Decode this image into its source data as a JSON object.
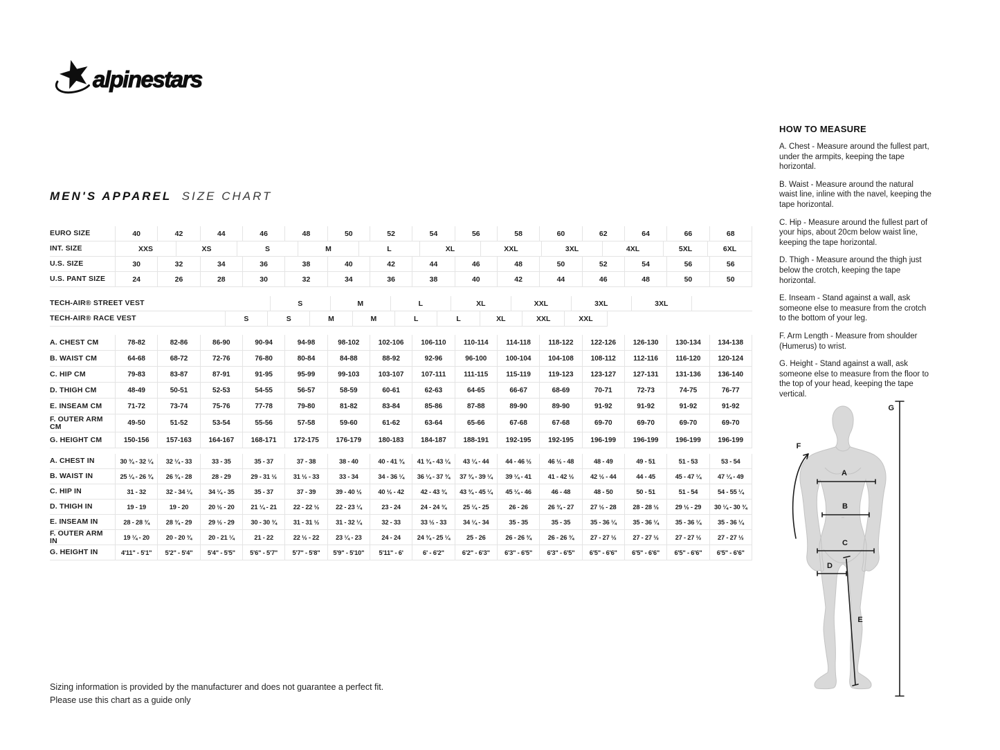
{
  "brand": {
    "text": "alpinestars"
  },
  "title": {
    "main": "MEN'S APPAREL",
    "sub": "SIZE CHART"
  },
  "table": {
    "groups": [
      {
        "rows": [
          {
            "label": "EURO SIZE",
            "layout": "plain",
            "values": [
              "40",
              "42",
              "44",
              "46",
              "48",
              "50",
              "52",
              "54",
              "56",
              "58",
              "60",
              "62",
              "64",
              "66",
              "68"
            ]
          },
          {
            "label": "INT. SIZE",
            "layout": "int",
            "values": [
              "XXS",
              "XS",
              "S",
              "M",
              "L",
              "XL",
              "XXL",
              "3XL",
              "4XL",
              "5XL",
              "6XL"
            ]
          },
          {
            "label": "U.S. SIZE",
            "layout": "plain",
            "values": [
              "30",
              "32",
              "34",
              "36",
              "38",
              "40",
              "42",
              "44",
              "46",
              "48",
              "50",
              "52",
              "54",
              "56",
              "56"
            ]
          },
          {
            "label": "U.S. PANT SIZE",
            "layout": "plain",
            "values": [
              "24",
              "26",
              "28",
              "30",
              "32",
              "34",
              "36",
              "38",
              "40",
              "42",
              "44",
              "46",
              "48",
              "50",
              "50"
            ]
          }
        ]
      },
      {
        "rows": [
          {
            "label": "TECH-AIR® STREET VEST",
            "layout": "street",
            "values": [
              "S",
              "M",
              "L",
              "XL",
              "XXL",
              "3XL",
              "3XL"
            ]
          },
          {
            "label": "TECH-AIR® RACE VEST",
            "layout": "race",
            "values": [
              "S",
              "S",
              "M",
              "M",
              "L",
              "L",
              "XL",
              "XXL",
              "XXL"
            ]
          }
        ]
      },
      {
        "rows": [
          {
            "label": "A. CHEST CM",
            "layout": "plain",
            "values": [
              "78-82",
              "82-86",
              "86-90",
              "90-94",
              "94-98",
              "98-102",
              "102-106",
              "106-110",
              "110-114",
              "114-118",
              "118-122",
              "122-126",
              "126-130",
              "130-134",
              "134-138"
            ]
          },
          {
            "label": "B. WAIST CM",
            "layout": "plain",
            "values": [
              "64-68",
              "68-72",
              "72-76",
              "76-80",
              "80-84",
              "84-88",
              "88-92",
              "92-96",
              "96-100",
              "100-104",
              "104-108",
              "108-112",
              "112-116",
              "116-120",
              "120-124"
            ]
          },
          {
            "label": "C. HIP CM",
            "layout": "plain",
            "values": [
              "79-83",
              "83-87",
              "87-91",
              "91-95",
              "95-99",
              "99-103",
              "103-107",
              "107-111",
              "111-115",
              "115-119",
              "119-123",
              "123-127",
              "127-131",
              "131-136",
              "136-140"
            ]
          },
          {
            "label": "D. THIGH CM",
            "layout": "plain",
            "values": [
              "48-49",
              "50-51",
              "52-53",
              "54-55",
              "56-57",
              "58-59",
              "60-61",
              "62-63",
              "64-65",
              "66-67",
              "68-69",
              "70-71",
              "72-73",
              "74-75",
              "76-77"
            ]
          },
          {
            "label": "E. INSEAM CM",
            "layout": "plain",
            "values": [
              "71-72",
              "73-74",
              "75-76",
              "77-78",
              "79-80",
              "81-82",
              "83-84",
              "85-86",
              "87-88",
              "89-90",
              "89-90",
              "91-92",
              "91-92",
              "91-92",
              "91-92"
            ]
          },
          {
            "label": "F. OUTER ARM CM",
            "layout": "plain",
            "tall": true,
            "values": [
              "49-50",
              "51-52",
              "53-54",
              "55-56",
              "57-58",
              "59-60",
              "61-62",
              "63-64",
              "65-66",
              "67-68",
              "67-68",
              "69-70",
              "69-70",
              "69-70",
              "69-70"
            ]
          },
          {
            "label": "G. HEIGHT CM",
            "layout": "plain",
            "values": [
              "150-156",
              "157-163",
              "164-167",
              "168-171",
              "172-175",
              "176-179",
              "180-183",
              "184-187",
              "188-191",
              "192-195",
              "192-195",
              "196-199",
              "196-199",
              "196-199",
              "196-199"
            ]
          }
        ]
      },
      {
        "rows": [
          {
            "label": "A. CHEST IN",
            "layout": "plain",
            "values": [
              "30 ¾ - 32 ¼",
              "32 ¼ - 33",
              "33 - 35",
              "35 - 37",
              "37 - 38",
              "38 - 40",
              "40 - 41 ¾",
              "41 ¾ - 43 ¼",
              "43 ¼ - 44",
              "44 - 46 ½",
              "46 ½ - 48",
              "48 - 49",
              "49 - 51",
              "51 - 53",
              "53 - 54"
            ]
          },
          {
            "label": "B. WAIST IN",
            "layout": "plain",
            "values": [
              "25 ¼ - 26 ¾",
              "26 ¾ - 28",
              "28 - 29",
              "29 - 31 ½",
              "31 ½ - 33",
              "33 - 34",
              "34 - 36 ¼",
              "36 ¼ - 37 ¾",
              "37 ¾ - 39 ¼",
              "39 ¼ - 41",
              "41 - 42 ½",
              "42 ½ - 44",
              "44 - 45",
              "45 - 47 ¼",
              "47 ¼ - 49"
            ]
          },
          {
            "label": "C. HIP IN",
            "layout": "plain",
            "values": [
              "31 - 32",
              "32 - 34 ¼",
              "34 ¼ - 35",
              "35 - 37",
              "37 - 39",
              "39 - 40 ½",
              "40 ½ - 42",
              "42 - 43 ¾",
              "43 ¾ - 45 ¼",
              "45 ¼ - 46",
              "46 - 48",
              "48 - 50",
              "50 - 51",
              "51 - 54",
              "54 - 55 ¼"
            ]
          },
          {
            "label": "D. THIGH IN",
            "layout": "plain",
            "values": [
              "19 - 19",
              "19 - 20",
              "20 ½ - 20",
              "21 ¼ - 21",
              "22 - 22 ½",
              "22 - 23 ¼",
              "23 - 24",
              "24 - 24 ¾",
              "25 ¼ - 25",
              "26 - 26",
              "26 ¾ - 27",
              "27 ½ - 28",
              "28 - 28 ½",
              "29 ½ - 29",
              "30 ¼ - 30 ¾"
            ]
          },
          {
            "label": "E. INSEAM IN",
            "layout": "plain",
            "values": [
              "28 - 28 ¾",
              "28 ¾ - 29",
              "29 ½ - 29",
              "30 - 30 ¾",
              "31 - 31 ½",
              "31 - 32 ¼",
              "32 - 33",
              "33 ½ - 33",
              "34 ¼ - 34",
              "35 - 35",
              "35 - 35",
              "35 - 36 ¼",
              "35 - 36 ¼",
              "35 - 36 ¼",
              "35 - 36 ¼"
            ]
          },
          {
            "label": "F. OUTER ARM IN",
            "layout": "plain",
            "values": [
              "19 ¼ - 20",
              "20 - 20 ¾",
              "20 - 21 ¼",
              "21 - 22",
              "22 ½ - 22",
              "23 ¼ - 23",
              "24 - 24",
              "24 ¾ - 25 ¼",
              "25 - 26",
              "26 - 26 ¾",
              "26 - 26 ¾",
              "27 - 27 ½",
              "27 - 27 ½",
              "27 - 27 ½",
              "27 - 27 ½"
            ]
          },
          {
            "label": "G. HEIGHT IN",
            "layout": "plain",
            "values": [
              "4'11\" - 5'1\"",
              "5'2\" - 5'4\"",
              "5'4\" - 5'5\"",
              "5'6\" - 5'7\"",
              "5'7\" - 5'8\"",
              "5'9\" - 5'10\"",
              "5'11\" - 6'",
              "6' - 6'2\"",
              "6'2\" - 6'3\"",
              "6'3\" - 6'5\"",
              "6'3\" - 6'5\"",
              "6'5\" - 6'6\"",
              "6'5\" - 6'6\"",
              "6'5\" - 6'6\"",
              "6'5\" - 6'6\""
            ]
          }
        ]
      }
    ]
  },
  "how_to": {
    "heading": "HOW TO MEASURE",
    "paragraphs": [
      "A. Chest - Measure around the fullest part, under the armpits, keeping the tape horizontal.",
      "B. Waist - Measure around the natural waist line, inline with the navel, keeping the tape horizontal.",
      "C. Hip - Measure around the fullest part of your hips, about 20cm below waist line, keeping the tape horizontal.",
      "D. Thigh - Measure around the thigh just below the crotch, keeping the tape horizontal.",
      "E. Inseam - Stand against a wall, ask someone else to measure from the crotch to the bottom of your leg.",
      "F. Arm Length - Measure from shoulder (Humerus) to wrist.",
      "G. Height - Stand against a wall, ask someone else to measure from the floor to the top of your head, keeping the tape vertical."
    ]
  },
  "figure": {
    "labels": [
      "A",
      "B",
      "C",
      "D",
      "E",
      "F",
      "G"
    ]
  },
  "footer": {
    "line1": "Sizing information is provided by the manufacturer and does not guarantee a perfect fit.",
    "line2": "Please use this chart as a guide only"
  },
  "colors": {
    "text": "#1d1d1d",
    "grid_line": "#e4e4e4",
    "silhouette": "#d9d9d9"
  }
}
